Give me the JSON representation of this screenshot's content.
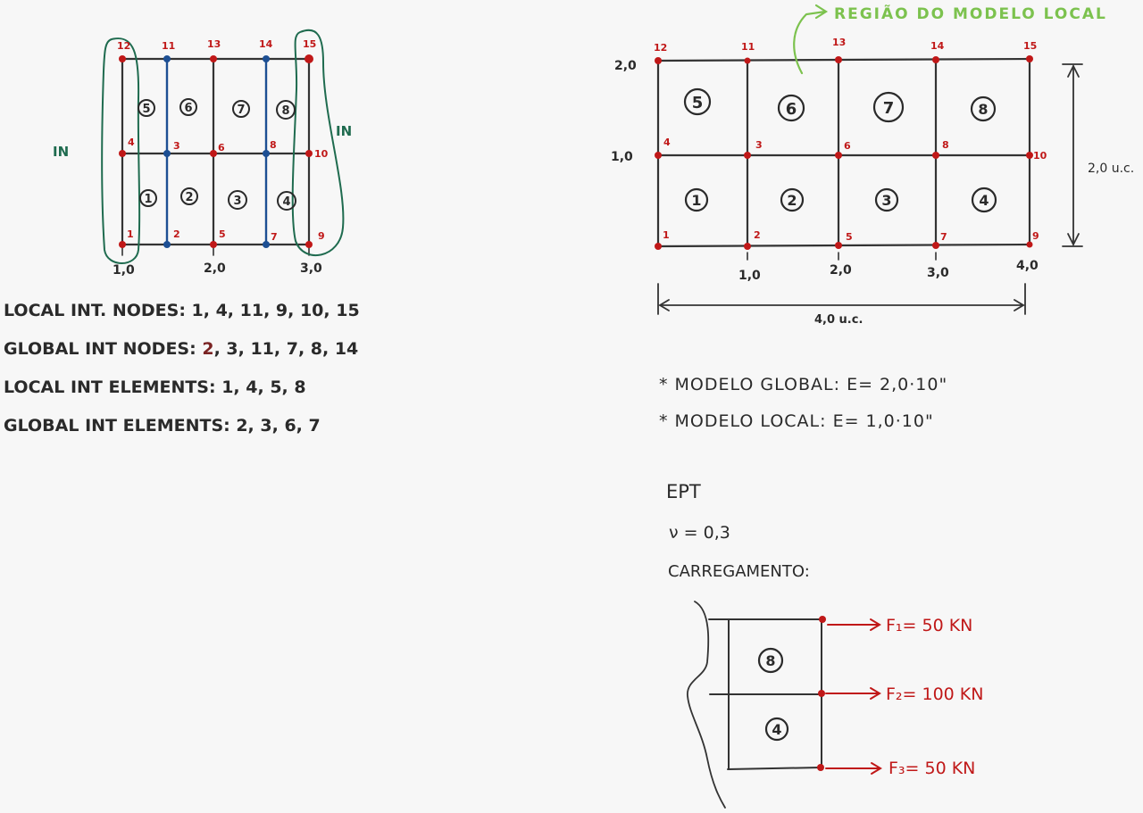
{
  "left_mesh": {
    "node_labels": [
      {
        "id": "1",
        "text": "1"
      },
      {
        "id": "2",
        "text": "2"
      },
      {
        "id": "5",
        "text": "5"
      },
      {
        "id": "7",
        "text": "7"
      },
      {
        "id": "9",
        "text": "9"
      },
      {
        "id": "4",
        "text": "4"
      },
      {
        "id": "3",
        "text": "3"
      },
      {
        "id": "6",
        "text": "6"
      },
      {
        "id": "8",
        "text": "8"
      },
      {
        "id": "10",
        "text": "10"
      },
      {
        "id": "12",
        "text": "12"
      },
      {
        "id": "11",
        "text": "11"
      },
      {
        "id": "13",
        "text": "13"
      },
      {
        "id": "14",
        "text": "14"
      },
      {
        "id": "15",
        "text": "15"
      }
    ],
    "element_labels": [
      "5",
      "6",
      "7",
      "8",
      "1",
      "2",
      "3",
      "4"
    ],
    "axis_ticks": [
      "1,0",
      "2,0",
      "3,0"
    ],
    "in_label_left": "IN",
    "in_label_right": "IN"
  },
  "lists": {
    "local_nodes": "LOCAL INT. NODES: 1, 4, 11, 9, 10, 15",
    "global_nodes_prefix": "GLOBAL INT NODES: ",
    "global_nodes_first": "2",
    "global_nodes_rest": ", 3, 11, 7, 8, 14",
    "local_elements": "LOCAL INT ELEMENTS: 1, 4, 5, 8",
    "global_elements": "GLOBAL INT ELEMENTS: 2, 3, 6, 7"
  },
  "right_mesh": {
    "region_label": "REGIÃO DO MODELO LOCAL",
    "node_labels_top": [
      "12",
      "11",
      "13",
      "14",
      "15"
    ],
    "node_labels_mid": [
      "4",
      "3",
      "6",
      "8",
      "10"
    ],
    "node_labels_bot": [
      "1",
      "2",
      "5",
      "7",
      "9"
    ],
    "element_labels": [
      "5",
      "6",
      "7",
      "8",
      "1",
      "2",
      "3",
      "4"
    ],
    "y_ticks": [
      "2,0",
      "1,0"
    ],
    "x_ticks": [
      "1,0",
      "2,0",
      "3,0",
      "4,0"
    ],
    "width_dim": "4,0 u.c.",
    "height_dim": "2,0 u.c."
  },
  "properties": {
    "global_model": "* MODELO GLOBAL:  E= 2,0·10\"",
    "local_model": "* MODELO LOCAL:    E= 1,0·10\"",
    "ept": "EPT",
    "poisson": "ν = 0,3",
    "loading": "CARREGAMENTO:"
  },
  "loading": {
    "elements": [
      "8",
      "4"
    ],
    "f1": "F₁= 50 KN",
    "f2": "F₂= 100 KN",
    "f3": "F₃= 50 KN"
  }
}
